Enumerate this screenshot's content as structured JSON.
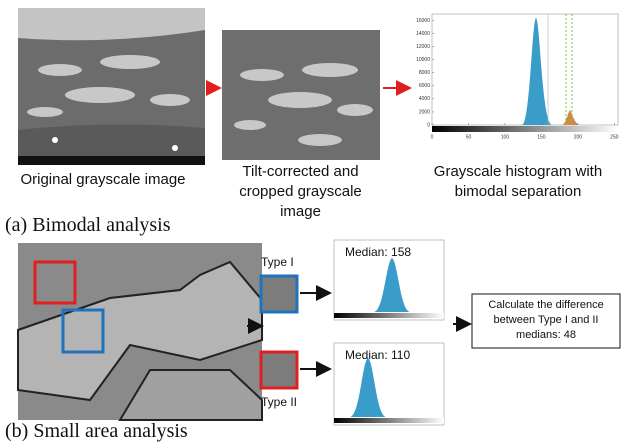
{
  "panel_a": {
    "label": "(a) Bimodal analysis",
    "steps": [
      {
        "caption": "Original grayscale image"
      },
      {
        "caption": "Tilt-corrected and cropped grayscale image"
      },
      {
        "caption": "Grayscale histogram with bimodal separation"
      }
    ],
    "histogram": {
      "xlim": [
        0,
        255
      ],
      "ylim": [
        0,
        17000
      ],
      "xticks": [
        0,
        50,
        100,
        150,
        200,
        250
      ],
      "yticks": [
        0,
        2000,
        4000,
        6000,
        8000,
        10000,
        12000,
        14000,
        16000
      ]
    }
  },
  "panel_b": {
    "label": "(b) Small area analysis",
    "regions": [
      {
        "name": "Type I",
        "median_label": "Median: 158"
      },
      {
        "name": "Type II",
        "median_label": "Median: 110"
      }
    ],
    "result": "Calculate the difference between Type I and II medians: 48"
  }
}
